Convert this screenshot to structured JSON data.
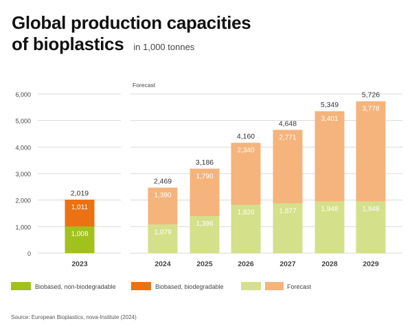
{
  "chart_data": {
    "type": "bar",
    "stacked": true,
    "title": "Global production capacities of bioplastics",
    "title_lines": [
      "Global production capacities",
      "of bioplastics"
    ],
    "subtitle": "in 1,000 tonnes",
    "forecast_label": "Forecast",
    "categories": [
      "2023",
      "2024",
      "2025",
      "2026",
      "2027",
      "2028",
      "2029"
    ],
    "series": [
      {
        "name": "Biobased, non-biodegradable",
        "values": [
          1008,
          1079,
          1396,
          1820,
          1877,
          1948,
          1948
        ]
      },
      {
        "name": "Biobased, biodegradable",
        "values": [
          1011,
          1390,
          1790,
          2340,
          2771,
          3401,
          3778
        ]
      }
    ],
    "totals": [
      "2,019",
      "2,469",
      "3,186",
      "4,160",
      "4,648",
      "5,349",
      "5,726"
    ],
    "forecast_from": "2024",
    "ylim": [
      0,
      6000
    ],
    "yticks": [
      "0",
      "1,000",
      "2,000",
      "3,000",
      "4,000",
      "5,000",
      "6,000"
    ],
    "grid": true,
    "legend": [
      {
        "label": "Biobased, non-biodegradable",
        "colors": [
          "#a3c11c"
        ]
      },
      {
        "label": "Biobased, biodegradable",
        "colors": [
          "#ec7112"
        ]
      },
      {
        "label": "Forecast",
        "colors": [
          "#d4e08a",
          "#f4b47c"
        ]
      }
    ],
    "colors": {
      "non_bio": "#a3c11c",
      "bio": "#ec7112",
      "forecast_non_bio": "#d4e08a",
      "forecast_bio": "#f4b47c"
    },
    "legend_position": "bottom",
    "source": "Source: European Bioplastics, nova-Institute (2024)"
  }
}
